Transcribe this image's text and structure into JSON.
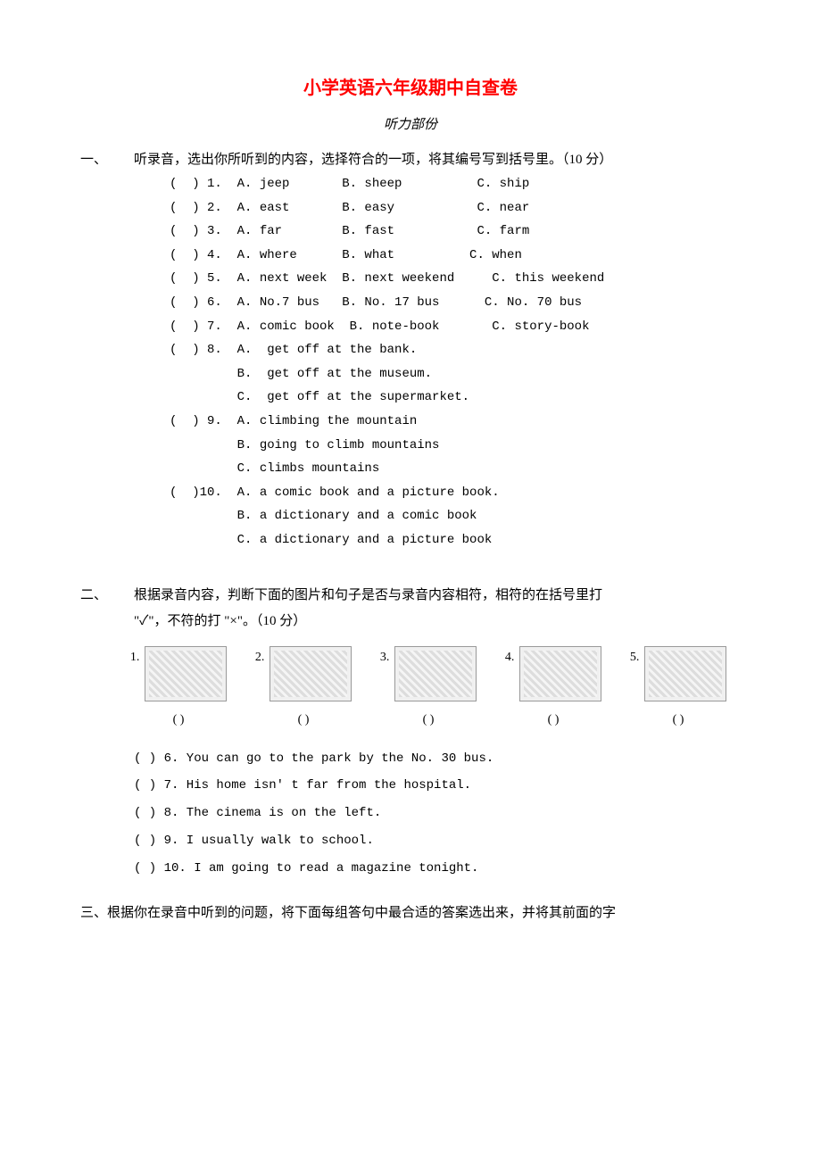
{
  "title": "小学英语六年级期中自查卷",
  "subtitle": "听力部份",
  "section1": {
    "num": "一、",
    "desc": "听录音，选出你所听到的内容，选择符合的一项，将其编号写到括号里。（10 分）",
    "rows": [
      "(  ) 1.  A. jeep       B. sheep          C. ship",
      "(  ) 2.  A. east       B. easy           C. near",
      "(  ) 3.  A. far        B. fast           C. farm",
      "(  ) 4.  A. where      B. what          C. when",
      "(  ) 5.  A. next week  B. next weekend     C. this weekend",
      "(  ) 6.  A. No.7 bus   B. No. 17 bus      C. No. 70 bus",
      "(  ) 7.  A. comic book  B. note-book       C. story-book",
      "(  ) 8.  A.  get off at the bank.",
      "         B.  get off at the museum.",
      "         C.  get off at the supermarket.",
      "(  ) 9.  A. climbing the mountain",
      "         B. going to climb mountains",
      "         C. climbs mountains",
      "(  )10.  A. a comic book and a picture book.",
      "         B. a dictionary and a comic book",
      "         C. a dictionary and a picture book"
    ]
  },
  "section2": {
    "num": "二、",
    "desc_line1": "根据录音内容，判断下面的图片和句子是否与录音内容相符，相符的在括号里打",
    "desc_line2": "\"✓\"，不符的打 \"×\"。（10 分）",
    "img_nums": [
      "1.",
      "2.",
      "3.",
      "4.",
      "5."
    ],
    "parens": [
      "(    )",
      "(    )",
      "(    )",
      "(    )",
      "(    )"
    ],
    "items": [
      "(   ) 6. You can go to the park by the No. 30 bus.",
      "(   ) 7. His home isn' t far from the hospital.",
      "(   ) 8. The cinema is on the left.",
      "(   ) 9. I usually walk to school.",
      "(   ) 10. I am going to read a magazine tonight."
    ]
  },
  "section3": {
    "text": "三、根据你在录音中听到的问题，将下面每组答句中最合适的答案选出来，并将其前面的字"
  }
}
